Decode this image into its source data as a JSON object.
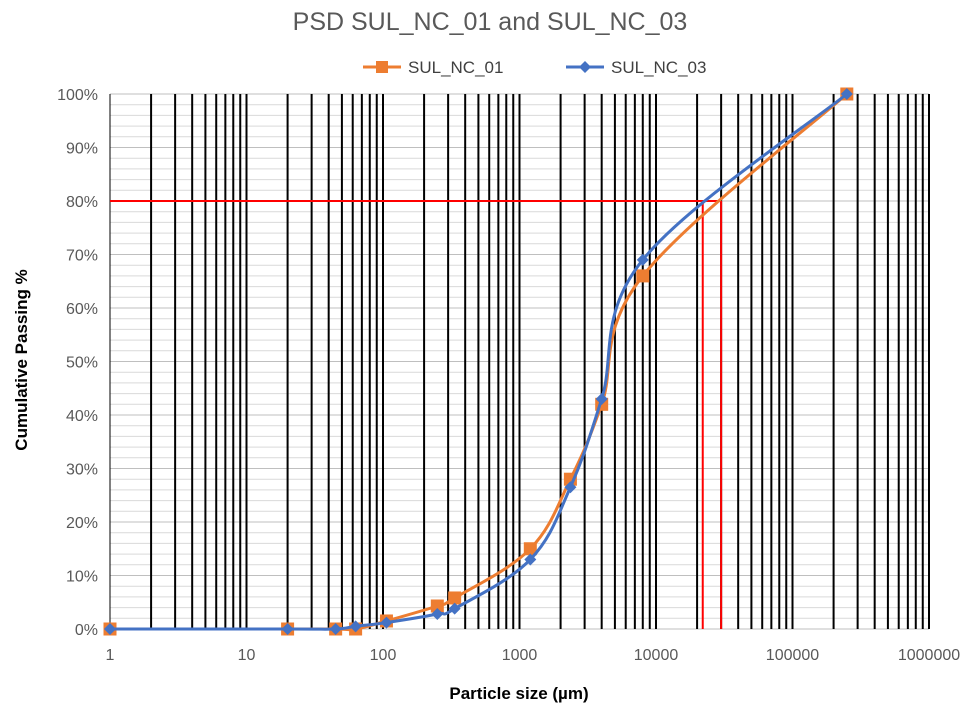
{
  "chart_data": {
    "type": "line",
    "title": "PSD SUL_NC_01 and SUL_NC_03",
    "xlabel": "Particle size (µm)",
    "ylabel": "Cumulative Passing %",
    "x_scale": "log",
    "xlim": [
      1,
      1000000
    ],
    "ylim": [
      0,
      100
    ],
    "x_tick_labels": [
      "1",
      "10",
      "100",
      "1000",
      "10000",
      "100000",
      "1000000"
    ],
    "y_tick_labels": [
      "0%",
      "10%",
      "20%",
      "30%",
      "40%",
      "50%",
      "60%",
      "70%",
      "80%",
      "90%",
      "100%"
    ],
    "grid": true,
    "legend_position": "top",
    "series": [
      {
        "name": "SUL_NC_01",
        "color": "#ED7D31",
        "marker": "square",
        "x": [
          1,
          20,
          45,
          63,
          106,
          250,
          335,
          1200,
          2360,
          4000,
          8000,
          250000
        ],
        "y": [
          0,
          0,
          0,
          0,
          1.5,
          4.3,
          5.8,
          15,
          28,
          42,
          66,
          100
        ]
      },
      {
        "name": "SUL_NC_03",
        "color": "#4472C4",
        "marker": "diamond",
        "x": [
          1,
          20,
          45,
          63,
          106,
          250,
          335,
          1200,
          2360,
          4000,
          8000,
          250000
        ],
        "y": [
          0,
          0,
          0,
          0.5,
          1.2,
          2.8,
          3.8,
          13,
          26.5,
          43,
          69,
          100
        ]
      }
    ],
    "reference_lines": {
      "color": "#FF0000",
      "horizontal_y": 80,
      "vertical_x": [
        22000,
        30000
      ]
    }
  }
}
